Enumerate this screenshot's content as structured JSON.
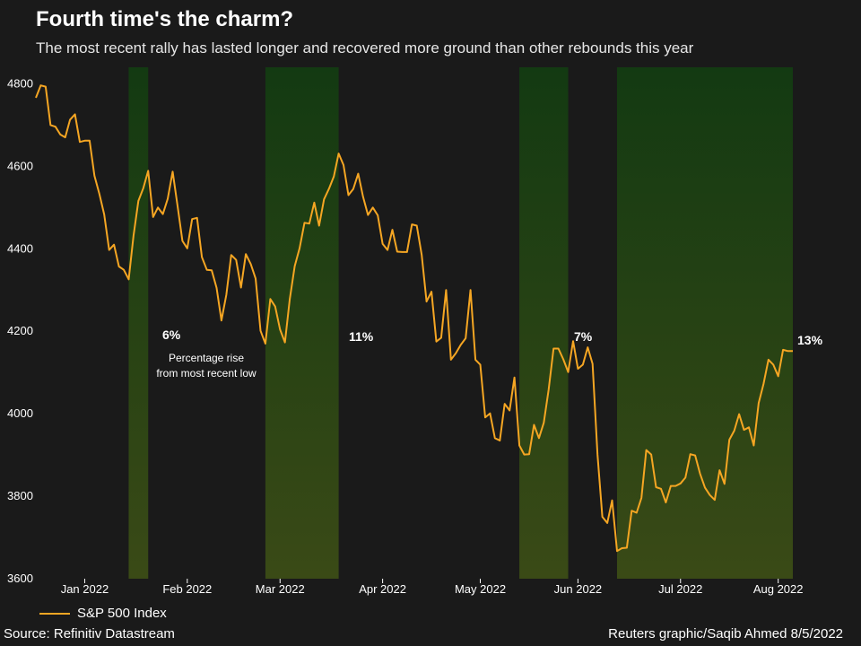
{
  "title": "Fourth time's the charm?",
  "subtitle": "The most recent rally has lasted longer and recovered more ground than other rebounds this year",
  "source": "Source: Refinitiv Datastream",
  "credit": "Reuters graphic/Saqib Ahmed 8/5/2022",
  "colors": {
    "background": "#1a1a1a",
    "line": "#f5a623",
    "band_top": "#133a12",
    "band_bottom": "#3a4a16"
  },
  "chart_data": {
    "type": "line",
    "title": "Fourth time's the charm?",
    "series": [
      {
        "name": "S&P 500 Index",
        "values": [
          4766,
          4796,
          4793,
          4700,
          4696,
          4677,
          4670,
          4713,
          4726,
          4659,
          4662,
          4662,
          4577,
          4533,
          4483,
          4397,
          4410,
          4357,
          4349,
          4326,
          4432,
          4516,
          4547,
          4589,
          4477,
          4500,
          4484,
          4521,
          4587,
          4505,
          4419,
          4401,
          4472,
          4475,
          4380,
          4349,
          4348,
          4305,
          4226,
          4289,
          4385,
          4373,
          4306,
          4387,
          4363,
          4328,
          4201,
          4170,
          4278,
          4260,
          4204,
          4173,
          4278,
          4358,
          4401,
          4463,
          4461,
          4512,
          4456,
          4520,
          4545,
          4575,
          4631,
          4603,
          4530,
          4545,
          4582,
          4526,
          4482,
          4500,
          4481,
          4412,
          4397,
          4446,
          4393,
          4392,
          4392,
          4459,
          4456,
          4385,
          4272,
          4296,
          4175,
          4184,
          4300,
          4131,
          4147,
          4167,
          4183,
          4300,
          4131,
          4119,
          3991,
          4001,
          3941,
          3935,
          4024,
          4008,
          4088,
          3923,
          3901,
          3902,
          3973,
          3941,
          3978,
          4058,
          4158,
          4158,
          4132,
          4101,
          4176,
          4109,
          4119,
          4161,
          4121,
          3901,
          3750,
          3735,
          3790,
          3667,
          3674,
          3675,
          3765,
          3760,
          3796,
          3912,
          3901,
          3822,
          3818,
          3785,
          3825,
          3825,
          3831,
          3845,
          3902,
          3899,
          3855,
          3821,
          3803,
          3791,
          3863,
          3830,
          3937,
          3959,
          3999,
          3961,
          3967,
          3923,
          4026,
          4072,
          4131,
          4119,
          4091,
          4155,
          4152,
          4152
        ]
      }
    ],
    "x_tick_labels": [
      "Jan 2022",
      "Feb 2022",
      "Mar 2022",
      "Apr 2022",
      "May 2022",
      "Jun 2022",
      "Jul 2022",
      "Aug 2022"
    ],
    "x_tick_index": [
      10,
      31,
      50,
      71,
      91,
      111,
      132,
      152
    ],
    "ylim": [
      3600,
      4840
    ],
    "y_ticks": [
      3600,
      3800,
      4000,
      4200,
      4400,
      4600,
      4800
    ],
    "rally_bands": [
      {
        "start": 19,
        "end": 23,
        "label": "6%"
      },
      {
        "start": 47,
        "end": 62,
        "label": "11%"
      },
      {
        "start": 99,
        "end": 109,
        "label": "7%"
      },
      {
        "start": 119,
        "end": 155,
        "label": "13%"
      }
    ],
    "annotation": "Percentage rise\nfrom most recent low",
    "legend": [
      "S&P 500 Index"
    ]
  }
}
